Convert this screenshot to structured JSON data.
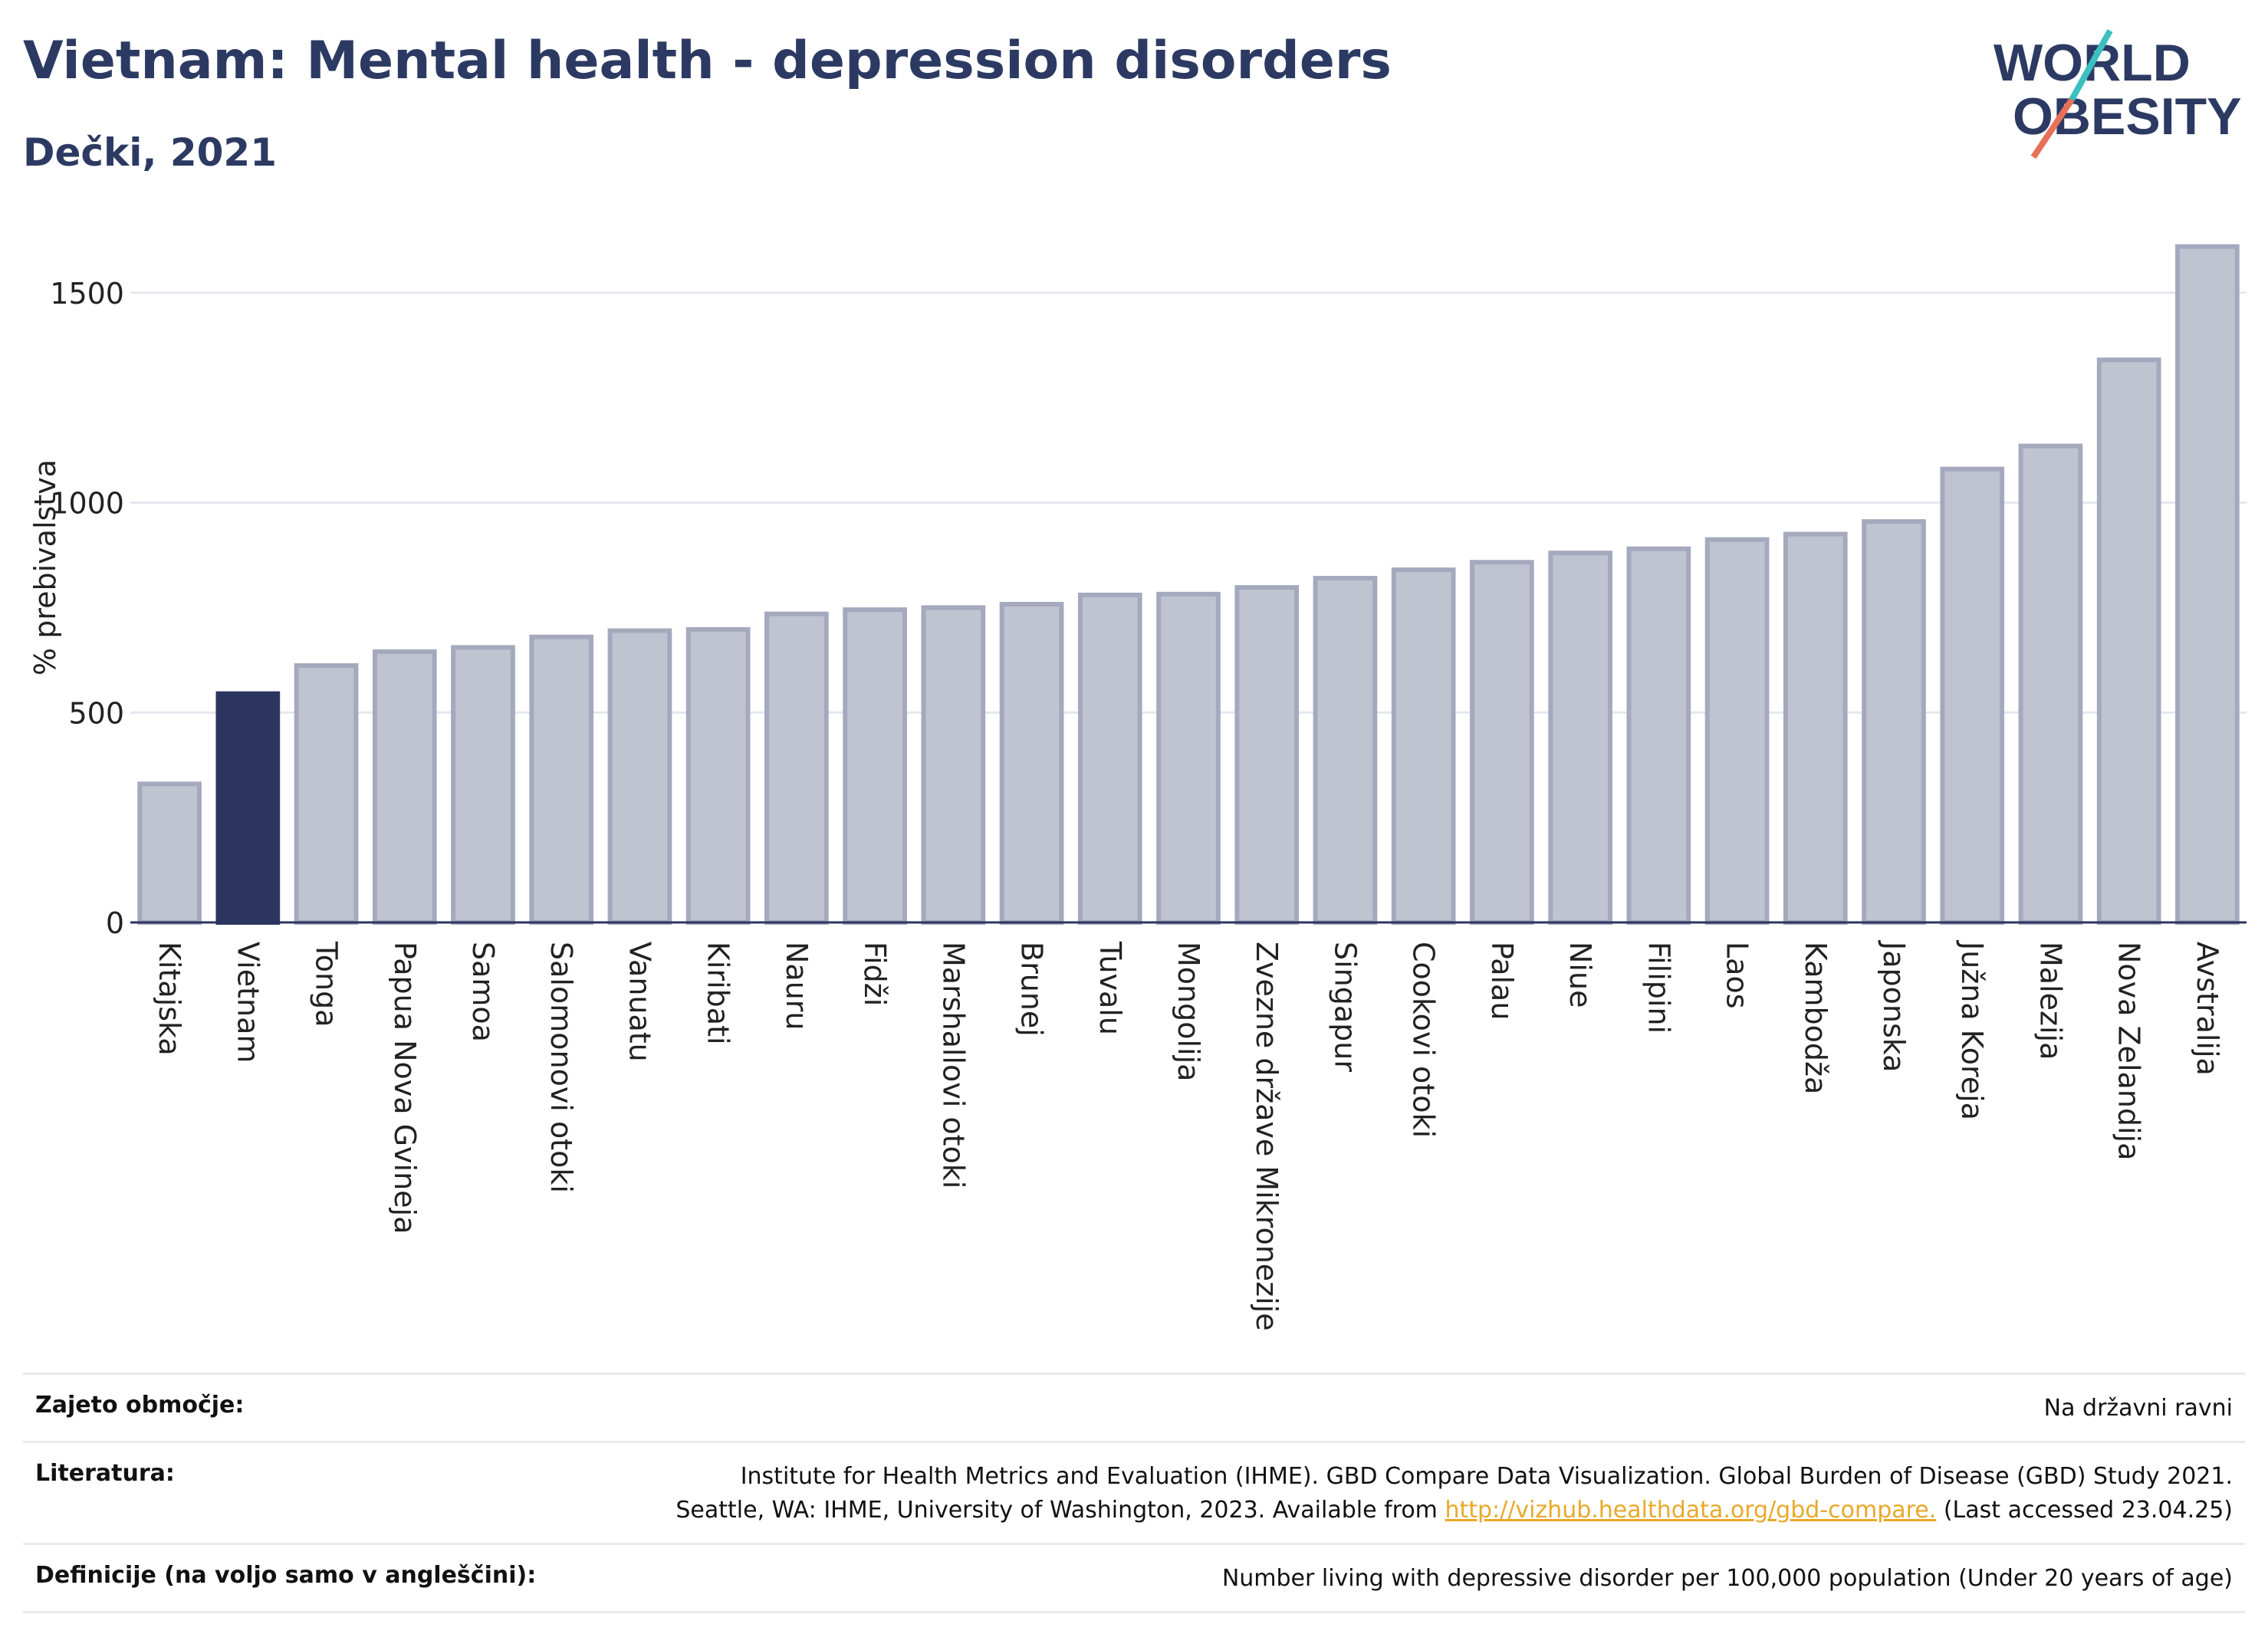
{
  "title": "Vietnam: Mental health - depression disorders",
  "subtitle": "Dečki, 2021",
  "logo": {
    "line1": "WORLD",
    "line2": "OBESITY",
    "accent_teal": "#3bbfbf",
    "accent_red": "#e8705a"
  },
  "colors": {
    "highlight": "#2c3560",
    "bar": "#c0c3d0",
    "bar_border": "#a5a9bd",
    "text": "#2c3a63",
    "link": "#e8a92a"
  },
  "chart_data": {
    "type": "bar",
    "ylabel": "% prebivalstva",
    "yticks": [
      0,
      500,
      1000,
      1500
    ],
    "ylim": [
      0,
      1650
    ],
    "grid": true,
    "highlight": "Vietnam",
    "categories": [
      "Kitajska",
      "Vietnam",
      "Tonga",
      "Papua Nova Gvineja",
      "Samoa",
      "Salomonovi otoki",
      "Vanuatu",
      "Kiribati",
      "Nauru",
      "Fidži",
      "Marshallovi otoki",
      "Brunej",
      "Tuvalu",
      "Mongolija",
      "Zvezne države Mikronezije",
      "Singapur",
      "Cookovi otoki",
      "Palau",
      "Niue",
      "Filipini",
      "Laos",
      "Kambodža",
      "Japonska",
      "Južna Koreja",
      "Malezija",
      "Nova Zelandija",
      "Avstralija"
    ],
    "values": [
      330,
      545,
      612,
      645,
      655,
      680,
      695,
      698,
      735,
      745,
      750,
      758,
      780,
      782,
      798,
      820,
      840,
      858,
      880,
      890,
      912,
      925,
      955,
      1080,
      1135,
      1340,
      1610
    ]
  },
  "footer": {
    "coverage_label": "Zajeto območje:",
    "coverage_value": "Na državni ravni",
    "references_label": "Literatura:",
    "references_line1": "Institute for Health Metrics and Evaluation (IHME). GBD Compare Data Visualization. Global Burden of Disease (GBD) Study 2021.",
    "references_line2_pre": "Seattle, WA: IHME, University of Washington, 2023. Available from ",
    "references_link": "http://vizhub.healthdata.org/gbd-compare.",
    "references_line2_post": " (Last accessed 23.04.25)",
    "definitions_label": "Definicije (na voljo samo v angleščini):",
    "definitions_value": "Number living with depressive disorder per 100,000 population (Under 20 years of age)"
  }
}
